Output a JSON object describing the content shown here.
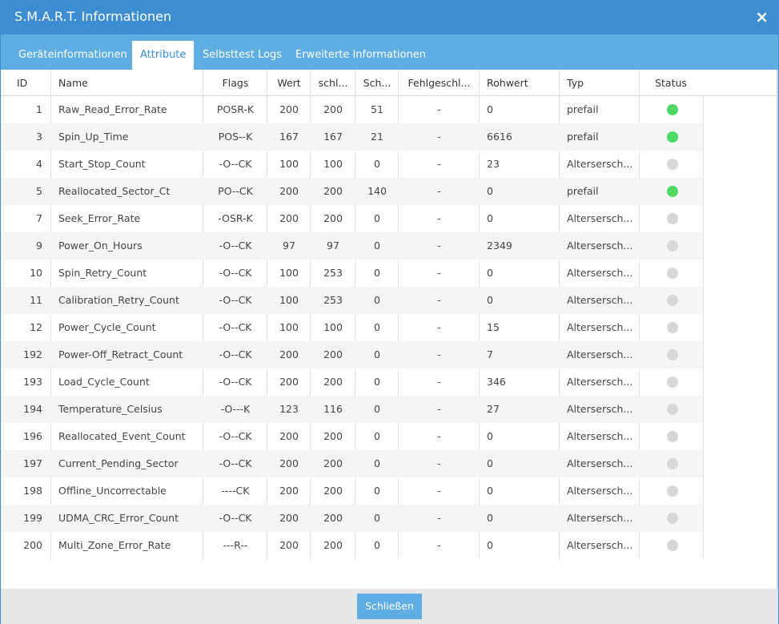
{
  "window": {
    "title": "S.M.A.R.T. Informationen",
    "close_icon": "×"
  },
  "tabs": [
    {
      "label": "Geräteinformationen",
      "active": false
    },
    {
      "label": "Attribute",
      "active": true
    },
    {
      "label": "Selbsttest Logs",
      "active": false
    },
    {
      "label": "Erweiterte Informationen",
      "active": false
    }
  ],
  "table": {
    "headers": {
      "id": "ID",
      "name": "Name",
      "flags": "Flags",
      "value": "Wert",
      "worst": "schl...",
      "threshold": "Sch...",
      "failed": "Fehlgeschl...",
      "raw": "Rohwert",
      "type": "Typ",
      "status": "Status"
    },
    "rows": [
      {
        "id": "1",
        "name": "Raw_Read_Error_Rate",
        "flags": "POSR-K",
        "value": "200",
        "worst": "200",
        "threshold": "51",
        "failed": "-",
        "raw": "0",
        "type": "prefail",
        "status": "ok"
      },
      {
        "id": "3",
        "name": "Spin_Up_Time",
        "flags": "POS--K",
        "value": "167",
        "worst": "167",
        "threshold": "21",
        "failed": "-",
        "raw": "6616",
        "type": "prefail",
        "status": "ok"
      },
      {
        "id": "4",
        "name": "Start_Stop_Count",
        "flags": "-O--CK",
        "value": "100",
        "worst": "100",
        "threshold": "0",
        "failed": "-",
        "raw": "23",
        "type": "Altersersch...",
        "status": "neutral"
      },
      {
        "id": "5",
        "name": "Reallocated_Sector_Ct",
        "flags": "PO--CK",
        "value": "200",
        "worst": "200",
        "threshold": "140",
        "failed": "-",
        "raw": "0",
        "type": "prefail",
        "status": "ok"
      },
      {
        "id": "7",
        "name": "Seek_Error_Rate",
        "flags": "-OSR-K",
        "value": "200",
        "worst": "200",
        "threshold": "0",
        "failed": "-",
        "raw": "0",
        "type": "Altersersch...",
        "status": "neutral"
      },
      {
        "id": "9",
        "name": "Power_On_Hours",
        "flags": "-O--CK",
        "value": "97",
        "worst": "97",
        "threshold": "0",
        "failed": "-",
        "raw": "2349",
        "type": "Altersersch...",
        "status": "neutral"
      },
      {
        "id": "10",
        "name": "Spin_Retry_Count",
        "flags": "-O--CK",
        "value": "100",
        "worst": "253",
        "threshold": "0",
        "failed": "-",
        "raw": "0",
        "type": "Altersersch...",
        "status": "neutral"
      },
      {
        "id": "11",
        "name": "Calibration_Retry_Count",
        "flags": "-O--CK",
        "value": "100",
        "worst": "253",
        "threshold": "0",
        "failed": "-",
        "raw": "0",
        "type": "Altersersch...",
        "status": "neutral"
      },
      {
        "id": "12",
        "name": "Power_Cycle_Count",
        "flags": "-O--CK",
        "value": "100",
        "worst": "100",
        "threshold": "0",
        "failed": "-",
        "raw": "15",
        "type": "Altersersch...",
        "status": "neutral"
      },
      {
        "id": "192",
        "name": "Power-Off_Retract_Count",
        "flags": "-O--CK",
        "value": "200",
        "worst": "200",
        "threshold": "0",
        "failed": "-",
        "raw": "7",
        "type": "Altersersch...",
        "status": "neutral"
      },
      {
        "id": "193",
        "name": "Load_Cycle_Count",
        "flags": "-O--CK",
        "value": "200",
        "worst": "200",
        "threshold": "0",
        "failed": "-",
        "raw": "346",
        "type": "Altersersch...",
        "status": "neutral"
      },
      {
        "id": "194",
        "name": "Temperature_Celsius",
        "flags": "-O---K",
        "value": "123",
        "worst": "116",
        "threshold": "0",
        "failed": "-",
        "raw": "27",
        "type": "Altersersch...",
        "status": "neutral"
      },
      {
        "id": "196",
        "name": "Reallocated_Event_Count",
        "flags": "-O--CK",
        "value": "200",
        "worst": "200",
        "threshold": "0",
        "failed": "-",
        "raw": "0",
        "type": "Altersersch...",
        "status": "neutral"
      },
      {
        "id": "197",
        "name": "Current_Pending_Sector",
        "flags": "-O--CK",
        "value": "200",
        "worst": "200",
        "threshold": "0",
        "failed": "-",
        "raw": "0",
        "type": "Altersersch...",
        "status": "neutral"
      },
      {
        "id": "198",
        "name": "Offline_Uncorrectable",
        "flags": "----CK",
        "value": "200",
        "worst": "200",
        "threshold": "0",
        "failed": "-",
        "raw": "0",
        "type": "Altersersch...",
        "status": "neutral"
      },
      {
        "id": "199",
        "name": "UDMA_CRC_Error_Count",
        "flags": "-O--CK",
        "value": "200",
        "worst": "200",
        "threshold": "0",
        "failed": "-",
        "raw": "0",
        "type": "Altersersch...",
        "status": "neutral"
      },
      {
        "id": "200",
        "name": "Multi_Zone_Error_Rate",
        "flags": "---R--",
        "value": "200",
        "worst": "200",
        "threshold": "0",
        "failed": "-",
        "raw": "0",
        "type": "Altersersch...",
        "status": "neutral"
      }
    ]
  },
  "colors": {
    "status_ok": "#4cd964",
    "status_neutral": "#d7d7d7",
    "accent": "#3c8dd2"
  },
  "footer": {
    "close_button_label": "Schließen"
  }
}
